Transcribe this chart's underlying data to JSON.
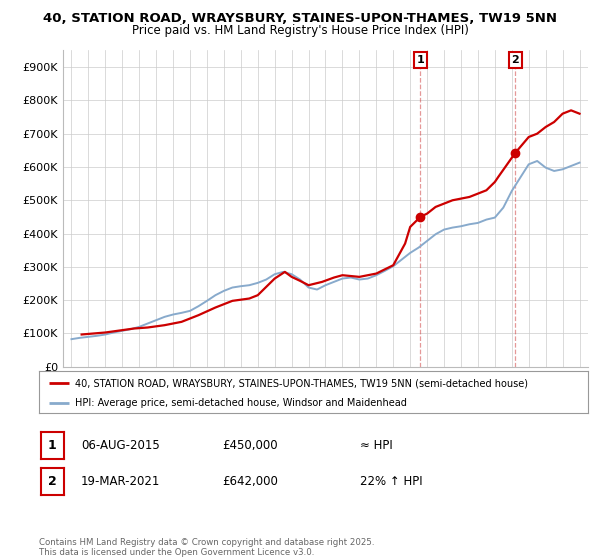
{
  "title_line1": "40, STATION ROAD, WRAYSBURY, STAINES-UPON-THAMES, TW19 5NN",
  "title_line2": "Price paid vs. HM Land Registry's House Price Index (HPI)",
  "ylim": [
    0,
    950000
  ],
  "yticks": [
    0,
    100000,
    200000,
    300000,
    400000,
    500000,
    600000,
    700000,
    800000,
    900000
  ],
  "ytick_labels": [
    "£0",
    "£100K",
    "£200K",
    "£300K",
    "£400K",
    "£500K",
    "£600K",
    "£700K",
    "£800K",
    "£900K"
  ],
  "xlim_start": 1994.5,
  "xlim_end": 2025.5,
  "price_paid_x": [
    1995.6,
    1997.0,
    1998.7,
    1999.5,
    2000.5,
    2001.5,
    2002.5,
    2003.5,
    2004.5,
    2005.5,
    2006.0,
    2007.0,
    2007.6,
    2008.0,
    2008.5,
    2009.0,
    2009.8,
    2010.5,
    2011.0,
    2012.0,
    2013.0,
    2014.0,
    2014.7,
    2015.0,
    2015.6,
    2016.0,
    2016.5,
    2017.0,
    2017.5,
    2018.0,
    2018.5,
    2019.0,
    2019.5,
    2020.0,
    2020.2,
    2021.2,
    2022.0,
    2022.5,
    2023.0,
    2023.5,
    2024.0,
    2024.5,
    2025.0
  ],
  "price_paid_y": [
    97000,
    103000,
    115000,
    118000,
    125000,
    135000,
    155000,
    178000,
    198000,
    205000,
    215000,
    265000,
    285000,
    270000,
    258000,
    245000,
    255000,
    268000,
    275000,
    270000,
    280000,
    305000,
    370000,
    420000,
    450000,
    460000,
    480000,
    490000,
    500000,
    505000,
    510000,
    520000,
    530000,
    555000,
    570000,
    642000,
    690000,
    700000,
    720000,
    735000,
    760000,
    770000,
    760000
  ],
  "hpi_x_values": [
    1995.0,
    1995.5,
    1996.0,
    1996.5,
    1997.0,
    1997.5,
    1998.0,
    1998.5,
    1999.0,
    1999.5,
    2000.0,
    2000.5,
    2001.0,
    2001.5,
    2002.0,
    2002.5,
    2003.0,
    2003.5,
    2004.0,
    2004.5,
    2005.0,
    2005.5,
    2006.0,
    2006.5,
    2007.0,
    2007.5,
    2008.0,
    2008.5,
    2009.0,
    2009.5,
    2010.0,
    2010.5,
    2011.0,
    2011.5,
    2012.0,
    2012.5,
    2013.0,
    2013.5,
    2014.0,
    2014.5,
    2015.0,
    2015.5,
    2016.0,
    2016.5,
    2017.0,
    2017.5,
    2018.0,
    2018.5,
    2019.0,
    2019.5,
    2020.0,
    2020.5,
    2021.0,
    2021.5,
    2022.0,
    2022.5,
    2023.0,
    2023.5,
    2024.0,
    2024.5,
    2025.0
  ],
  "hpi_y_values": [
    83000,
    87000,
    90000,
    93000,
    97000,
    103000,
    108000,
    113000,
    120000,
    130000,
    140000,
    150000,
    157000,
    162000,
    168000,
    182000,
    198000,
    215000,
    228000,
    238000,
    242000,
    245000,
    252000,
    262000,
    278000,
    285000,
    278000,
    262000,
    238000,
    232000,
    245000,
    255000,
    265000,
    268000,
    262000,
    265000,
    275000,
    288000,
    302000,
    322000,
    342000,
    358000,
    378000,
    398000,
    412000,
    418000,
    422000,
    428000,
    432000,
    442000,
    448000,
    478000,
    528000,
    568000,
    608000,
    618000,
    598000,
    588000,
    593000,
    603000,
    613000
  ],
  "price_color": "#cc0000",
  "hpi_color": "#88aacc",
  "marker1_x": 2015.6,
  "marker1_y": 450000,
  "marker2_x": 2021.2,
  "marker2_y": 642000,
  "vline1_x": 2015.6,
  "vline2_x": 2021.2,
  "legend_line1": "40, STATION ROAD, WRAYSBURY, STAINES-UPON-THAMES, TW19 5NN (semi-detached house)",
  "legend_line2": "HPI: Average price, semi-detached house, Windsor and Maidenhead",
  "marker1_date": "06-AUG-2015",
  "marker1_price": "£450,000",
  "marker1_hpi": "≈ HPI",
  "marker2_date": "19-MAR-2021",
  "marker2_price": "£642,000",
  "marker2_hpi": "22% ↑ HPI",
  "footer": "Contains HM Land Registry data © Crown copyright and database right 2025.\nThis data is licensed under the Open Government Licence v3.0.",
  "background_color": "#ffffff",
  "grid_color": "#cccccc",
  "vline_color": "#cc3333",
  "vline_alpha": 0.5
}
